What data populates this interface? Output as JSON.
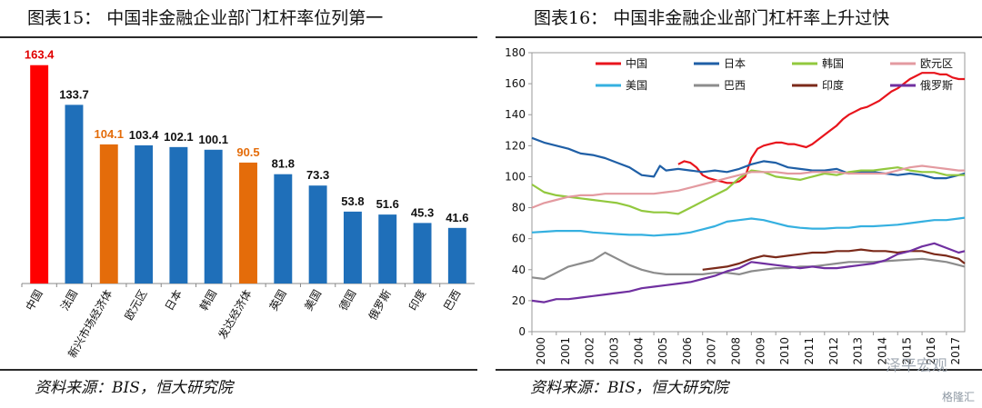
{
  "left": {
    "title": "图表15：   中国非金融企业部门杠杆率位列第一",
    "source": "资料来源：BIS，恒大研究院"
  },
  "right": {
    "title": "图表16：   中国非金融企业部门杠杆率上升过快",
    "source": "资料来源：BIS，恒大研究院"
  },
  "watermark": "泽平宏观",
  "watermark2": "格隆汇",
  "colors": {
    "red": "#ff0000",
    "blue": "#1f6fb9",
    "orange": "#e46c0a",
    "axis": "#888888"
  },
  "chart_data": [
    {
      "type": "bar",
      "title": "中国非金融企业部门杠杆率位列第一",
      "categories": [
        "中国",
        "法国",
        "新兴市场经济体",
        "欧元区",
        "日本",
        "韩国",
        "发达经济体",
        "英国",
        "美国",
        "德国",
        "俄罗斯",
        "印度",
        "巴西"
      ],
      "values": [
        163.4,
        133.7,
        104.1,
        103.4,
        102.1,
        100.1,
        90.5,
        81.8,
        73.3,
        53.8,
        51.6,
        45.3,
        41.6
      ],
      "value_labels": [
        "163.4",
        "133.7",
        "104.1",
        "103.4",
        "102.1",
        "100.1",
        "90.5",
        "81.8",
        "73.3",
        "53.8",
        "51.6",
        "45.3",
        "41.6"
      ],
      "bar_colors": [
        "#ff0000",
        "#1f6fb9",
        "#e46c0a",
        "#1f6fb9",
        "#1f6fb9",
        "#1f6fb9",
        "#e46c0a",
        "#1f6fb9",
        "#1f6fb9",
        "#1f6fb9",
        "#1f6fb9",
        "#1f6fb9",
        "#1f6fb9"
      ],
      "label_colors": [
        "#e00000",
        "#111111",
        "#e46c0a",
        "#111111",
        "#111111",
        "#111111",
        "#e46c0a",
        "#111111",
        "#111111",
        "#111111",
        "#111111",
        "#111111",
        "#111111"
      ],
      "ylim": [
        0,
        170
      ],
      "grid": false
    },
    {
      "type": "line",
      "title": "中国非金融企业部门杠杆率上升过快",
      "x_ticks": [
        "2000",
        "2001",
        "2002",
        "2003",
        "2004",
        "2005",
        "2006",
        "2007",
        "2008",
        "2009",
        "2010",
        "2011",
        "2012",
        "2013",
        "2014",
        "2015",
        "2016",
        "2017"
      ],
      "y_ticks": [
        0,
        20,
        40,
        60,
        80,
        100,
        120,
        140,
        160,
        180
      ],
      "xlim": [
        2000,
        2017.75
      ],
      "ylim": [
        0,
        180
      ],
      "grid": false,
      "legend_position": "top",
      "series": [
        {
          "name": "中国",
          "color": "#e8141c",
          "x": [
            2006,
            2006.25,
            2006.5,
            2006.75,
            2007,
            2007.25,
            2007.5,
            2007.75,
            2008,
            2008.25,
            2008.5,
            2008.75,
            2009,
            2009.25,
            2009.5,
            2009.75,
            2010,
            2010.25,
            2010.5,
            2010.75,
            2011,
            2011.25,
            2011.5,
            2011.75,
            2012,
            2012.25,
            2012.5,
            2012.75,
            2013,
            2013.25,
            2013.5,
            2013.75,
            2014,
            2014.25,
            2014.5,
            2014.75,
            2015,
            2015.25,
            2015.5,
            2015.75,
            2016,
            2016.25,
            2016.5,
            2016.75,
            2017,
            2017.25,
            2017.5,
            2017.75
          ],
          "y": [
            108,
            110,
            109,
            106,
            101,
            99,
            98,
            97,
            96,
            96,
            97,
            100,
            112,
            118,
            120,
            121,
            122,
            122,
            121,
            121,
            120,
            119,
            121,
            124,
            127,
            130,
            133,
            137,
            140,
            142,
            144,
            145,
            147,
            149,
            152,
            155,
            157,
            160,
            163,
            165,
            167,
            167,
            167,
            166,
            166,
            164,
            163,
            163
          ]
        },
        {
          "name": "日本",
          "color": "#1f5fa6",
          "x": [
            2000,
            2000.5,
            2001,
            2001.5,
            2002,
            2002.5,
            2003,
            2003.5,
            2004,
            2004.5,
            2005,
            2005.25,
            2005.5,
            2006,
            2006.5,
            2007,
            2007.5,
            2008,
            2008.5,
            2009,
            2009.5,
            2010,
            2010.5,
            2011,
            2011.5,
            2012,
            2012.5,
            2013,
            2013.5,
            2014,
            2014.5,
            2015,
            2015.5,
            2016,
            2016.5,
            2017,
            2017.5,
            2017.75
          ],
          "y": [
            125,
            122,
            120,
            118,
            115,
            114,
            112,
            109,
            106,
            101,
            100,
            107,
            104,
            105,
            104,
            103,
            104,
            103,
            105,
            108,
            110,
            109,
            106,
            105,
            104,
            104,
            105,
            102,
            103,
            103,
            102,
            101,
            102,
            101,
            99,
            99,
            101,
            102
          ]
        },
        {
          "name": "韩国",
          "color": "#92c83e",
          "x": [
            2000,
            2000.5,
            2001,
            2001.5,
            2002,
            2002.5,
            2003,
            2003.5,
            2004,
            2004.5,
            2005,
            2005.5,
            2006,
            2006.5,
            2007,
            2007.5,
            2008,
            2008.5,
            2009,
            2009.5,
            2010,
            2010.5,
            2011,
            2011.5,
            2012,
            2012.5,
            2013,
            2013.5,
            2014,
            2014.5,
            2015,
            2015.5,
            2016,
            2016.5,
            2017,
            2017.5,
            2017.75
          ],
          "y": [
            95,
            90,
            88,
            87,
            86,
            85,
            84,
            83,
            81,
            78,
            77,
            77,
            76,
            80,
            84,
            88,
            92,
            99,
            104,
            103,
            100,
            99,
            98,
            100,
            102,
            101,
            103,
            104,
            104,
            105,
            106,
            104,
            103,
            103,
            101,
            101,
            101
          ]
        },
        {
          "name": "欧元区",
          "color": "#e39aa0",
          "x": [
            2000,
            2000.5,
            2001,
            2001.5,
            2002,
            2002.5,
            2003,
            2003.5,
            2004,
            2004.5,
            2005,
            2005.5,
            2006,
            2006.5,
            2007,
            2007.5,
            2008,
            2008.5,
            2009,
            2009.5,
            2010,
            2010.5,
            2011,
            2011.5,
            2012,
            2012.5,
            2013,
            2013.5,
            2014,
            2014.5,
            2015,
            2015.5,
            2016,
            2016.5,
            2017,
            2017.5,
            2017.75
          ],
          "y": [
            80,
            83,
            85,
            87,
            88,
            88,
            89,
            89,
            89,
            89,
            89,
            90,
            91,
            93,
            95,
            97,
            99,
            101,
            103,
            103,
            103,
            102,
            102,
            103,
            103,
            103,
            102,
            102,
            102,
            102,
            104,
            106,
            107,
            106,
            105,
            104,
            104
          ]
        },
        {
          "name": "美国",
          "color": "#35b0e0",
          "x": [
            2000,
            2000.5,
            2001,
            2001.5,
            2002,
            2002.5,
            2003,
            2003.5,
            2004,
            2004.5,
            2005,
            2005.5,
            2006,
            2006.5,
            2007,
            2007.5,
            2008,
            2008.5,
            2009,
            2009.5,
            2010,
            2010.5,
            2011,
            2011.5,
            2012,
            2012.5,
            2013,
            2013.5,
            2014,
            2014.5,
            2015,
            2015.5,
            2016,
            2016.5,
            2017,
            2017.5,
            2017.75
          ],
          "y": [
            64,
            64.5,
            65,
            65,
            65,
            64,
            63.5,
            63,
            62.5,
            62.5,
            62,
            62.5,
            63,
            64,
            66,
            68,
            71,
            72,
            73,
            72,
            70,
            68,
            67,
            66.5,
            66.5,
            67,
            67,
            68,
            68,
            68.5,
            69,
            70,
            71,
            72,
            72,
            73,
            73.5
          ]
        },
        {
          "name": "巴西",
          "color": "#8c8c8c",
          "x": [
            2000,
            2000.5,
            2001,
            2001.5,
            2002,
            2002.5,
            2003,
            2003.5,
            2004,
            2004.5,
            2005,
            2005.5,
            2006,
            2006.5,
            2007,
            2007.5,
            2008,
            2008.5,
            2009,
            2009.5,
            2010,
            2010.5,
            2011,
            2011.5,
            2012,
            2012.5,
            2013,
            2013.5,
            2014,
            2014.5,
            2015,
            2015.5,
            2016,
            2016.5,
            2017,
            2017.5,
            2017.75
          ],
          "y": [
            35,
            34,
            38,
            42,
            44,
            46,
            51,
            47,
            43,
            40,
            38,
            37,
            37,
            37,
            37,
            38,
            38,
            37,
            39,
            40,
            41,
            41,
            42,
            42,
            43,
            44,
            45,
            45,
            45,
            45.5,
            46,
            46.5,
            47,
            46,
            45,
            43,
            42
          ]
        },
        {
          "name": "印度",
          "color": "#7b2a1a",
          "x": [
            2007,
            2007.5,
            2008,
            2008.5,
            2009,
            2009.5,
            2010,
            2010.5,
            2011,
            2011.5,
            2012,
            2012.5,
            2013,
            2013.5,
            2014,
            2014.5,
            2015,
            2015.5,
            2016,
            2016.5,
            2017,
            2017.5,
            2017.75
          ],
          "y": [
            40,
            41,
            42,
            44,
            47,
            49,
            48,
            49,
            50,
            51,
            51,
            52,
            52,
            53,
            52,
            52,
            51,
            52,
            52,
            50,
            49,
            47,
            44
          ]
        },
        {
          "name": "俄罗斯",
          "color": "#7030a0",
          "x": [
            2000,
            2000.5,
            2001,
            2001.5,
            2002,
            2002.5,
            2003,
            2003.5,
            2004,
            2004.5,
            2005,
            2005.5,
            2006,
            2006.5,
            2007,
            2007.5,
            2008,
            2008.5,
            2009,
            2009.5,
            2010,
            2010.5,
            2011,
            2011.5,
            2012,
            2012.5,
            2013,
            2013.5,
            2014,
            2014.5,
            2015,
            2015.5,
            2016,
            2016.5,
            2017,
            2017.5,
            2017.75
          ],
          "y": [
            20,
            19,
            21,
            21,
            22,
            23,
            24,
            25,
            26,
            28,
            29,
            30,
            31,
            32,
            34,
            36,
            39,
            41,
            45,
            44,
            43,
            42,
            41,
            42,
            41,
            41,
            42,
            43,
            44,
            46,
            50,
            52,
            55,
            57,
            54,
            51,
            52
          ]
        }
      ]
    }
  ]
}
